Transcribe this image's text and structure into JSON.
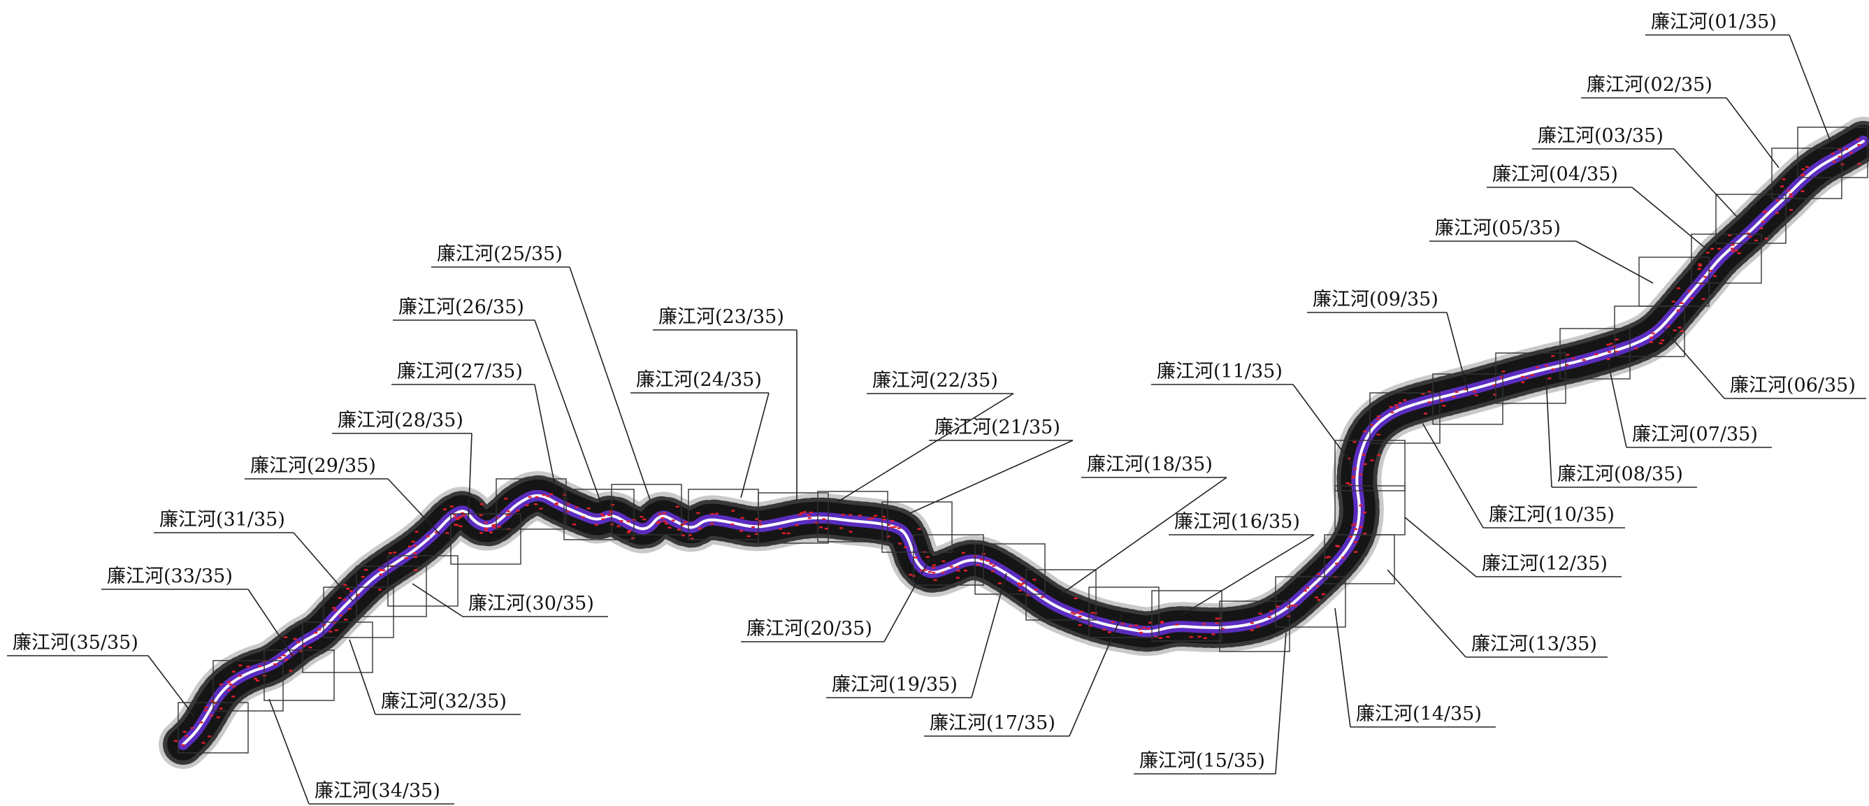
{
  "river_name": "廉江河",
  "sheet_total": "35",
  "colors": {
    "background": "#ffffff",
    "terrain": "#151515",
    "buffer": "#9c9c9c",
    "channel": "#5a2dbf",
    "centerline": "#ffffff",
    "markers": "#e0202a"
  },
  "sheets": [
    {
      "id": "01",
      "label": "廉江河(01/35)"
    },
    {
      "id": "02",
      "label": "廉江河(02/35)"
    },
    {
      "id": "03",
      "label": "廉江河(03/35)"
    },
    {
      "id": "04",
      "label": "廉江河(04/35)"
    },
    {
      "id": "05",
      "label": "廉江河(05/35)"
    },
    {
      "id": "06",
      "label": "廉江河(06/35)"
    },
    {
      "id": "07",
      "label": "廉江河(07/35)"
    },
    {
      "id": "08",
      "label": "廉江河(08/35)"
    },
    {
      "id": "09",
      "label": "廉江河(09/35)"
    },
    {
      "id": "10",
      "label": "廉江河(10/35)"
    },
    {
      "id": "11",
      "label": "廉江河(11/35)"
    },
    {
      "id": "12",
      "label": "廉江河(12/35)"
    },
    {
      "id": "13",
      "label": "廉江河(13/35)"
    },
    {
      "id": "14",
      "label": "廉江河(14/35)"
    },
    {
      "id": "15",
      "label": "廉江河(15/35)"
    },
    {
      "id": "16",
      "label": "廉江河(16/35)"
    },
    {
      "id": "17",
      "label": "廉江河(17/35)"
    },
    {
      "id": "18",
      "label": "廉江河(18/35)"
    },
    {
      "id": "19",
      "label": "廉江河(19/35)"
    },
    {
      "id": "20",
      "label": "廉江河(20/35)"
    },
    {
      "id": "21",
      "label": "廉江河(21/35)"
    },
    {
      "id": "22",
      "label": "廉江河(22/35)"
    },
    {
      "id": "23",
      "label": "廉江河(23/35)"
    },
    {
      "id": "24",
      "label": "廉江河(24/35)"
    },
    {
      "id": "25",
      "label": "廉江河(25/35)"
    },
    {
      "id": "26",
      "label": "廉江河(26/35)"
    },
    {
      "id": "27",
      "label": "廉江河(27/35)"
    },
    {
      "id": "28",
      "label": "廉江河(28/35)"
    },
    {
      "id": "29",
      "label": "廉江河(29/35)"
    },
    {
      "id": "30",
      "label": "廉江河(30/35)"
    },
    {
      "id": "31",
      "label": "廉江河(31/35)"
    },
    {
      "id": "32",
      "label": "廉江河(32/35)"
    },
    {
      "id": "33",
      "label": "廉江河(33/35)"
    },
    {
      "id": "34",
      "label": "廉江河(34/35)"
    },
    {
      "id": "35",
      "label": "廉江河(35/35)"
    }
  ]
}
